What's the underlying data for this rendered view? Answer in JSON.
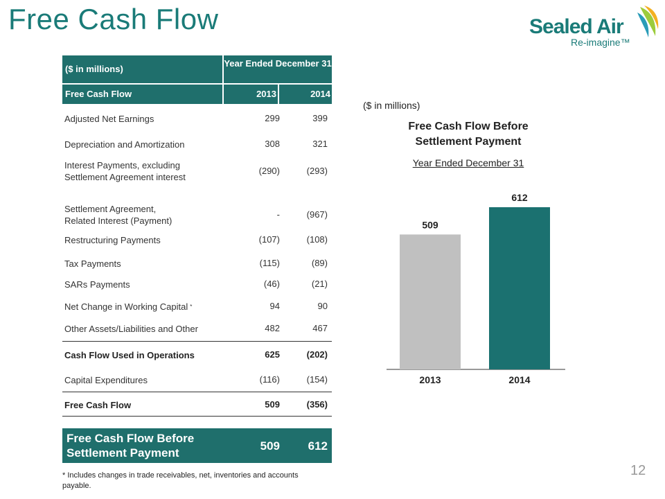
{
  "title": "Free Cash Flow",
  "logo": {
    "name": "Sealed Air",
    "tagline": "Re-imagine™"
  },
  "table": {
    "header": {
      "units": "($ in millions)",
      "period": "Year Ended December 31"
    },
    "subheader": {
      "label": "Free Cash Flow",
      "year1": "2013",
      "year2": "2014"
    },
    "rows": [
      {
        "label": "Adjusted Net Earnings",
        "v2013": "299",
        "v2014": "399"
      },
      {
        "label": "Depreciation and Amortization",
        "v2013": "308",
        "v2014": "321"
      },
      {
        "label_line1": "Interest Payments, excluding",
        "label_line2": "Settlement Agreement interest",
        "v2013": "(290)",
        "v2014": "(293)"
      },
      {
        "label_line1": "Settlement Agreement,",
        "label_line2": "Related Interest (Payment)",
        "v2013": "-",
        "v2014": "(967)"
      },
      {
        "label": "Restructuring Payments",
        "v2013": "(107)",
        "v2014": "(108)"
      },
      {
        "label": "Tax Payments",
        "v2013": "(115)",
        "v2014": "(89)"
      },
      {
        "label": "SARs Payments",
        "v2013": "(46)",
        "v2014": "(21)"
      },
      {
        "label": "Net Change in Working Capital",
        "marker": "*",
        "v2013": "94",
        "v2014": "90"
      },
      {
        "label": "Other Assets/Liabilities and Other",
        "v2013": "482",
        "v2014": "467"
      }
    ],
    "ops": {
      "label": "Cash Flow Used in Operations",
      "v2013": "625",
      "v2014": "(202)"
    },
    "capex": {
      "label": "Capital Expenditures",
      "v2013": "(116)",
      "v2014": "(154)"
    },
    "fcf": {
      "label": "Free Cash Flow",
      "v2013": "509",
      "v2014": "(356)"
    },
    "summary": {
      "label_line1": "Free Cash Flow Before",
      "label_line2": "Settlement Payment",
      "v2013": "509",
      "v2014": "612"
    }
  },
  "footnote": "* Includes changes in trade receivables, net, inventories and accounts payable.",
  "page_number": "12",
  "chart_data": {
    "type": "bar",
    "units": "($ in millions)",
    "title_line1": "Free Cash Flow Before",
    "title_line2": "Settlement Payment",
    "subtitle": "Year Ended December 31",
    "categories": [
      "2013",
      "2014"
    ],
    "values": [
      509,
      612
    ],
    "value_labels": [
      "509",
      "612"
    ],
    "colors": [
      "#c0c0c0",
      "#1b7170"
    ],
    "ylim": [
      0,
      740
    ]
  }
}
